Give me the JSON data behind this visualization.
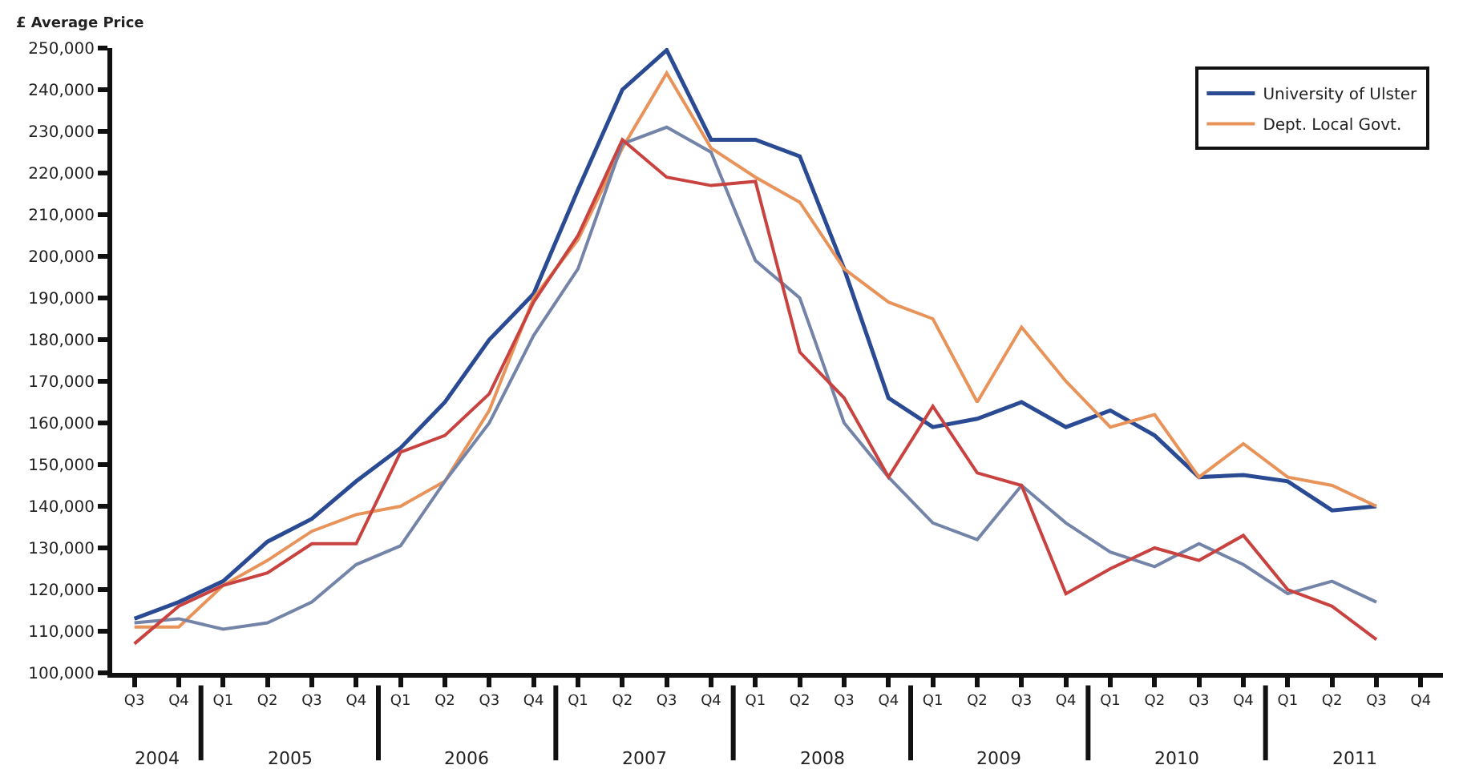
{
  "chart_data": {
    "type": "line",
    "ylabel": "£ Average Price",
    "categories": [
      "Q3",
      "Q4",
      "Q1",
      "Q2",
      "Q3",
      "Q4",
      "Q1",
      "Q2",
      "Q3",
      "Q4",
      "Q1",
      "Q2",
      "Q3",
      "Q4",
      "Q1",
      "Q2",
      "Q3",
      "Q4",
      "Q1",
      "Q2",
      "Q3",
      "Q4",
      "Q1",
      "Q2",
      "Q3",
      "Q4",
      "Q1",
      "Q2",
      "Q3",
      "Q4"
    ],
    "annotations": [
      "2004",
      "2005",
      "2006",
      "2007",
      "2008",
      "2009",
      "2010",
      "2011"
    ],
    "series": [
      {
        "name": "University of Ulster",
        "color": "#2b4a94",
        "values": [
          113000,
          117000,
          122000,
          131500,
          137000,
          146000,
          154000,
          165000,
          180000,
          191000,
          216000,
          240000,
          249500,
          228000,
          228000,
          224000,
          197000,
          166000,
          159000,
          161000,
          165000,
          159000,
          163000,
          157000,
          147000,
          147500,
          146000,
          139000,
          140000,
          null
        ]
      },
      {
        "name": "Dept. Local Govt.",
        "color": "#e8935a",
        "values": [
          111000,
          111000,
          121000,
          127000,
          134000,
          138000,
          140000,
          146000,
          163000,
          190000,
          204000,
          226000,
          244000,
          226000,
          219000,
          213000,
          197000,
          189000,
          185000,
          165000,
          183000,
          170000,
          159000,
          162000,
          147000,
          155000,
          147000,
          145000,
          140000,
          null
        ]
      },
      {
        "color": "#7484a8",
        "values": [
          112000,
          113000,
          110500,
          112000,
          117000,
          126000,
          130500,
          146000,
          160000,
          181000,
          197000,
          227000,
          231000,
          225000,
          199000,
          190000,
          160000,
          147000,
          136000,
          132000,
          145000,
          136000,
          129000,
          125500,
          131000,
          126000,
          119000,
          122000,
          117000,
          null
        ]
      },
      {
        "color": "#c8423f",
        "values": [
          107000,
          116000,
          121000,
          124000,
          131000,
          131000,
          153000,
          157000,
          167000,
          189000,
          205000,
          228000,
          219000,
          217000,
          218000,
          177000,
          166000,
          147000,
          164000,
          148000,
          145000,
          119000,
          125000,
          130000,
          127000,
          133000,
          120000,
          116000,
          108000,
          null
        ]
      }
    ],
    "ylim": [
      100000,
      250000
    ],
    "yticks": [
      {
        "value": 100000,
        "label": "100,000"
      },
      {
        "value": 110000,
        "label": "110,000"
      },
      {
        "value": 120000,
        "label": "120,000"
      },
      {
        "value": 130000,
        "label": "130,000"
      },
      {
        "value": 140000,
        "label": "140,000"
      },
      {
        "value": 150000,
        "label": "150,000"
      },
      {
        "value": 160000,
        "label": "160,000"
      },
      {
        "value": 170000,
        "label": "170,000"
      },
      {
        "value": 180000,
        "label": "180,000"
      },
      {
        "value": 190000,
        "label": "190,000"
      },
      {
        "value": 200000,
        "label": "200,000"
      },
      {
        "value": 210000,
        "label": "210,000"
      },
      {
        "value": 220000,
        "label": "220,000"
      },
      {
        "value": 230000,
        "label": "230,000"
      },
      {
        "value": 240000,
        "label": "240,000"
      },
      {
        "value": 250000,
        "label": "250,000"
      }
    ],
    "grid": false,
    "legend": "top right",
    "marker": "none",
    "line_style": "solid"
  }
}
